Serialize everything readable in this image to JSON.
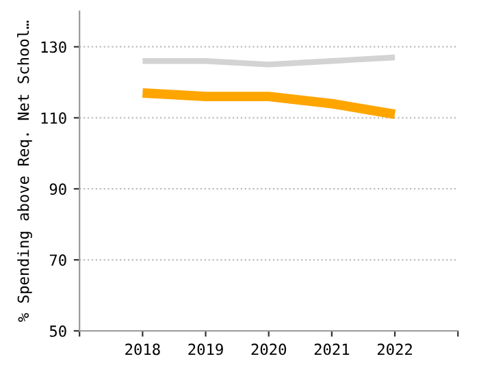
{
  "chart_data": {
    "type": "line",
    "ylabel": "% Spending above Req. Net School…",
    "x": [
      2018,
      2019,
      2020,
      2021,
      2022
    ],
    "series": [
      {
        "color": "#d3d3d3",
        "values": [
          126,
          126,
          125,
          126,
          127
        ]
      },
      {
        "color": "#ffa500",
        "values": [
          117,
          116,
          116,
          114,
          111
        ]
      }
    ],
    "xlim": [
      2017,
      2023
    ],
    "xticks": [
      {
        "value": 2017,
        "label": null
      },
      2018,
      2019,
      2020,
      2021,
      2022,
      {
        "value": 2023,
        "label": null
      }
    ],
    "ylim": [
      50,
      140
    ],
    "yticks": [
      50,
      70,
      90,
      110,
      130
    ],
    "grid": "y",
    "marker": "none",
    "line_style": "solid",
    "legend": false
  }
}
